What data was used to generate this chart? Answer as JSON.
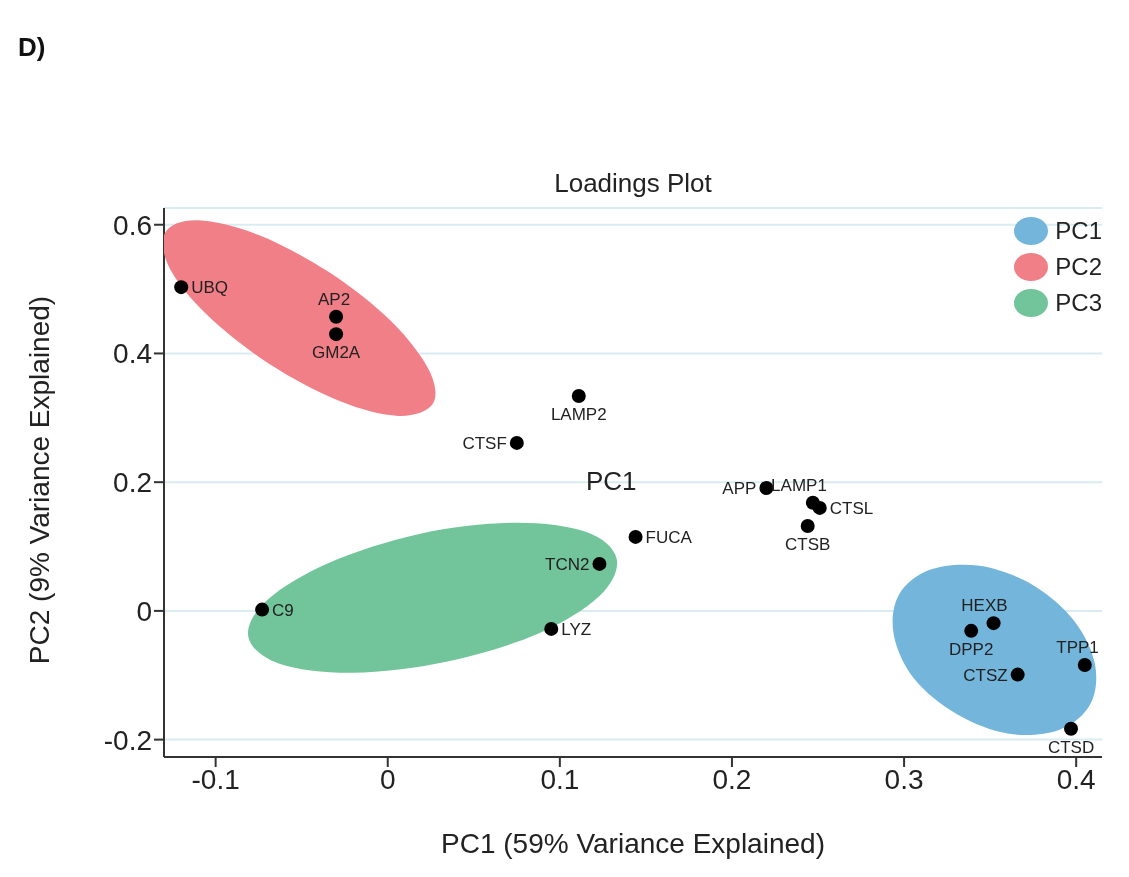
{
  "chart_data": {
    "type": "scatter",
    "title": "Loadings Plot",
    "xlabel": "PC1 (59% Variance Explained)",
    "ylabel": "PC2 (9% Variance Explained)",
    "xlim": [
      -0.13,
      0.415
    ],
    "ylim": [
      -0.227,
      0.626
    ],
    "xticks": [
      -0.1,
      0,
      0.1,
      0.2,
      0.3,
      0.4
    ],
    "yticks": [
      -0.2,
      0,
      0.2,
      0.4,
      0.6
    ],
    "grid": "y",
    "legend": "top right",
    "series": [
      {
        "type": "area",
        "name": "PC1",
        "color": "#74b5dc",
        "x": [
          0.408,
          0.39,
          0.361,
          0.331,
          0.306,
          0.294,
          0.297,
          0.315,
          0.344,
          0.375,
          0.399,
          0.411
        ],
        "values": [
          -0.146,
          -0.185,
          -0.191,
          -0.161,
          -0.106,
          -0.037,
          0.025,
          0.064,
          0.07,
          0.04,
          -0.016,
          -0.084
        ]
      },
      {
        "type": "area",
        "name": "PC2",
        "color": "#f07f87",
        "x": [
          0.026,
          0.006,
          -0.028,
          -0.069,
          -0.105,
          -0.127,
          -0.129,
          -0.11,
          -0.075,
          -0.034,
          0.002,
          0.024
        ],
        "values": [
          0.321,
          0.303,
          0.326,
          0.384,
          0.46,
          0.534,
          0.589,
          0.607,
          0.584,
          0.526,
          0.45,
          0.374
        ]
      },
      {
        "type": "area",
        "name": "PC3",
        "color": "#72c49b",
        "x": [
          0.133,
          0.123,
          0.087,
          0.034,
          -0.02,
          -0.063,
          -0.081,
          -0.07,
          -0.034,
          0.019,
          0.073,
          0.115
        ],
        "values": [
          0.081,
          0.023,
          -0.036,
          -0.079,
          -0.096,
          -0.082,
          -0.04,
          0.017,
          0.075,
          0.12,
          0.137,
          0.123
        ]
      },
      {
        "marker": "circle",
        "color": "#000000",
        "x": [
          0.251,
          0.244,
          0.22,
          0.247,
          -0.12,
          -0.03,
          0.075,
          -0.03,
          -0.073,
          0.111,
          0.366,
          0.352,
          0.144,
          0.339,
          0.123,
          0.405,
          0.095,
          0.397
        ],
        "values": [
          0.16,
          0.132,
          0.191,
          0.168,
          0.503,
          0.43,
          0.261,
          0.457,
          0.002,
          0.334,
          -0.099,
          -0.019,
          0.115,
          -0.031,
          0.073,
          -0.084,
          -0.028,
          -0.183
        ]
      }
    ],
    "annotations": [
      "D)",
      "PC1",
      {
        "text": "CTSL",
        "x": 0.251,
        "y": 0.16
      },
      {
        "text": "CTSB",
        "x": 0.244,
        "y": 0.132
      },
      {
        "text": "APP",
        "x": 0.22,
        "y": 0.191
      },
      {
        "text": "LAMP1",
        "x": 0.247,
        "y": 0.168
      },
      {
        "text": "UBQ",
        "x": -0.12,
        "y": 0.503
      },
      {
        "text": "GM2A",
        "x": -0.03,
        "y": 0.43
      },
      {
        "text": "CTSF",
        "x": 0.075,
        "y": 0.261
      },
      {
        "text": "AP2",
        "x": -0.03,
        "y": 0.457
      },
      {
        "text": "C9",
        "x": -0.073,
        "y": 0.002
      },
      {
        "text": "LAMP2",
        "x": 0.111,
        "y": 0.334
      },
      {
        "text": "CTSZ",
        "x": 0.366,
        "y": -0.099
      },
      {
        "text": "HEXB",
        "x": 0.352,
        "y": -0.019
      },
      {
        "text": "FUCA",
        "x": 0.144,
        "y": 0.115
      },
      {
        "text": "DPP2",
        "x": 0.339,
        "y": -0.031
      },
      {
        "text": "TCN2",
        "x": 0.123,
        "y": 0.073
      },
      {
        "text": "TPP1",
        "x": 0.405,
        "y": -0.084
      },
      {
        "text": "LYZ",
        "x": 0.095,
        "y": -0.028
      },
      {
        "text": "CTSD",
        "x": 0.397,
        "y": -0.183
      }
    ]
  }
}
